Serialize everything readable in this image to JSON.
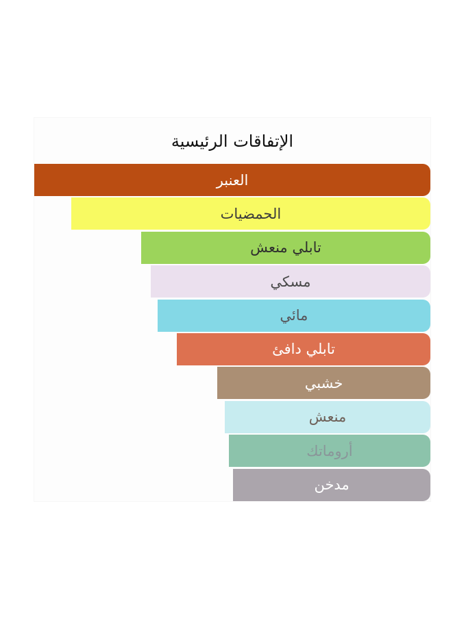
{
  "chart_data": {
    "type": "bar",
    "orientation": "horizontal",
    "direction": "rtl",
    "title": "الإتفاقات الرئيسية",
    "value_unit": "percent_of_widest_bar",
    "legend": "none",
    "axes": "none",
    "bars": [
      {
        "label": "العنبر",
        "value_pct": 100,
        "color": "#ba4d12",
        "text_color": "#ffffff"
      },
      {
        "label": "الحمضيات",
        "value_pct": 90.7,
        "color": "#f8fa62",
        "text_color": "#3c3c3c"
      },
      {
        "label": "تابلي منعش",
        "value_pct": 73.0,
        "color": "#9cd45b",
        "text_color": "#2e2e2e"
      },
      {
        "label": "مسكي",
        "value_pct": 70.6,
        "color": "#ebe0ee",
        "text_color": "#4a4a4a"
      },
      {
        "label": "مائي",
        "value_pct": 68.9,
        "color": "#84d8e6",
        "text_color": "#57555a"
      },
      {
        "label": "تابلي دافئ",
        "value_pct": 64.0,
        "color": "#dd7150",
        "text_color": "#ffffff"
      },
      {
        "label": "خشبي",
        "value_pct": 53.8,
        "color": "#ab8f74",
        "text_color": "#ffffff"
      },
      {
        "label": "منعش",
        "value_pct": 51.9,
        "color": "#c7ecf0",
        "text_color": "#6e6058"
      },
      {
        "label": "أروماتك",
        "value_pct": 50.9,
        "color": "#8cc3ab",
        "text_color": "#8a9599"
      },
      {
        "label": "مدخن",
        "value_pct": 49.8,
        "color": "#aba5ac",
        "text_color": "#ffffff"
      }
    ]
  }
}
